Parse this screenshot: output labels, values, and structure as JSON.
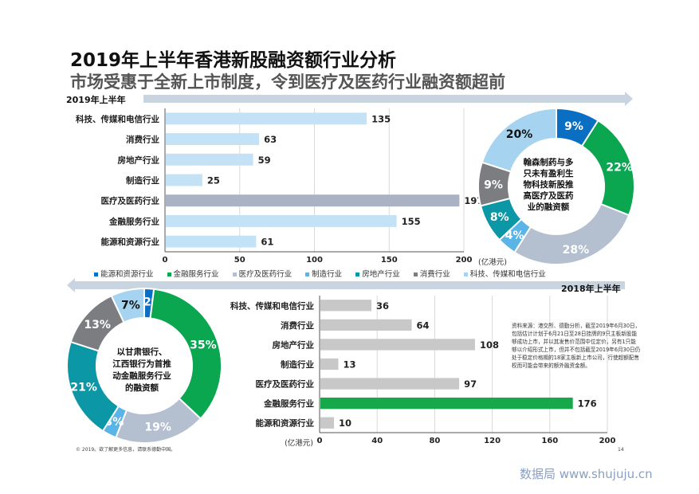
{
  "title": "2019年上半年香港新股融资额行业分析",
  "subtitle": "市场受惠于全新上市制度，令到医疗及医药行业融资额超前",
  "period_2019": "2019年上半年",
  "period_2018": "2018年上半年",
  "colors": {
    "energy": "#0a6fc2",
    "finance": "#0aa650",
    "medical": "#b4bfcf",
    "manufacturing": "#5ab4e6",
    "property": "#0b97a5",
    "consumer": "#7b7d80",
    "tech": "#a6d4f0",
    "bar2019": "#c4e2f5",
    "bar2019_highlight": "#a9b3c3",
    "bar2018": "#c8c8c8",
    "bar2018_highlight": "#16a84a",
    "arrow": "#c9d4e1"
  },
  "legend": {
    "items": [
      {
        "label": "能源和资源行业",
        "color": "#0a6fc2"
      },
      {
        "label": "金融服务行业",
        "color": "#0aa650"
      },
      {
        "label": "医疗及医药行业",
        "color": "#b4bfcf"
      },
      {
        "label": "制造行业",
        "color": "#5ab4e6"
      },
      {
        "label": "房地产行业",
        "color": "#0b97a5"
      },
      {
        "label": "消费行业",
        "color": "#7b7d80"
      },
      {
        "label": "科技、传媒和电信行业",
        "color": "#a6d4f0"
      }
    ]
  },
  "donut_2019_center": [
    "翰森制药与多",
    "只未有盈利生",
    "物科技新股推",
    "高医疗及医药",
    "业的融资额"
  ],
  "donut_2018_center": [
    "以甘肃银行、",
    "江西银行为首推",
    "动金融服务行业",
    "的融资额"
  ],
  "note": "资料来源：港交所、德勤分析，截至2019年6月30日，包括估计计划于6月21日至28日挂牌的9只主板新股能够成功上市，并以其发售价范围中位定价，另有1只能够以介绍形式上市，但并不包括截至2019年6月30日仍处于稳定价格期的18家主板新上市公司，行使超额配售权而可能会带来的额外融资金额。",
  "copyright": "© 2019。欲了解更多信息，请联系德勤中国。",
  "page_number": "14",
  "watermark": "数据局 www.shujuju.cn",
  "chart_data": [
    {
      "type": "bar",
      "orientation": "horizontal",
      "period": "2019年上半年",
      "categories": [
        "科技、传媒和电信行业",
        "消费行业",
        "房地产行业",
        "制造行业",
        "医疗及医药行业",
        "金融服务行业",
        "能源和资源行业"
      ],
      "values": [
        135,
        63,
        59,
        25,
        197,
        155,
        61
      ],
      "xlim": [
        0,
        200
      ],
      "ticks": [
        0,
        50,
        100,
        150,
        200
      ],
      "unit": "(亿港元)"
    },
    {
      "type": "pie",
      "period": "2019年上半年",
      "slices": [
        {
          "label": "能源和资源行业",
          "value": 9,
          "text": "9%"
        },
        {
          "label": "金融服务行业",
          "value": 22,
          "text": "22%"
        },
        {
          "label": "医疗及医药行业",
          "value": 28,
          "text": "28%"
        },
        {
          "label": "制造行业",
          "value": 4,
          "text": "4%"
        },
        {
          "label": "房地产行业",
          "value": 8,
          "text": "8%"
        },
        {
          "label": "消费行业",
          "value": 9,
          "text": "9%"
        },
        {
          "label": "科技、传媒和电信行业",
          "value": 20,
          "text": "20%"
        }
      ]
    },
    {
      "type": "bar",
      "orientation": "horizontal",
      "period": "2018年上半年",
      "categories": [
        "科技、传媒和电信行业",
        "消费行业",
        "房地产行业",
        "制造行业",
        "医疗及医药行业",
        "金融服务行业",
        "能源和资源行业"
      ],
      "values": [
        36,
        64,
        108,
        13,
        97,
        176,
        10
      ],
      "xlim": [
        0,
        200
      ],
      "ticks": [
        0,
        40,
        80,
        120,
        160,
        200
      ],
      "unit": "(亿港元)"
    },
    {
      "type": "pie",
      "period": "2018年上半年",
      "slices": [
        {
          "label": "能源和资源行业",
          "value": 2,
          "text": "2%"
        },
        {
          "label": "金融服务行业",
          "value": 35,
          "text": "35%"
        },
        {
          "label": "医疗及医药行业",
          "value": 19,
          "text": "19%"
        },
        {
          "label": "制造行业",
          "value": 3,
          "text": "3%"
        },
        {
          "label": "房地产行业",
          "value": 21,
          "text": "21%"
        },
        {
          "label": "消费行业",
          "value": 13,
          "text": "13%"
        },
        {
          "label": "科技、传媒和电信行业",
          "value": 7,
          "text": "7%"
        }
      ]
    }
  ]
}
